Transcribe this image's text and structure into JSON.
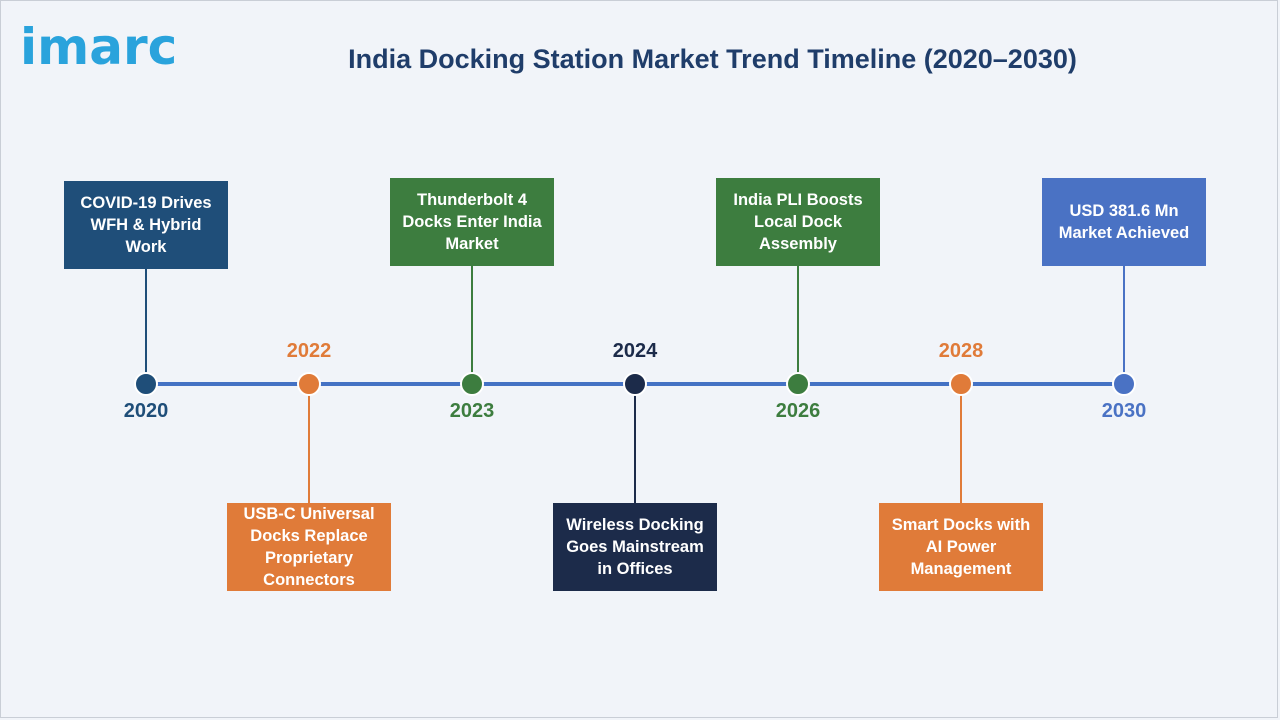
{
  "logo": "imarc",
  "title": "India Docking Station Market Trend Timeline (2020–2030)",
  "colors": {
    "line": "#4472c4",
    "navy": "#1f4e79",
    "orange": "#e07b39",
    "green": "#3d7d3f",
    "dark": "#1c2b4a",
    "blue": "#4a72c4"
  },
  "milestones": [
    {
      "year": "2020",
      "text": "COVID-19 Drives WFH & Hybrid Work",
      "position": "above",
      "color": "#1f4e79"
    },
    {
      "year": "2022",
      "text": "USB-C Universal Docks Replace Proprietary Connectors",
      "position": "below",
      "color": "#e07b39"
    },
    {
      "year": "2023",
      "text": "Thunderbolt 4 Docks Enter India Market",
      "position": "above",
      "color": "#3d7d3f"
    },
    {
      "year": "2024",
      "text": "Wireless Docking Goes Mainstream in Offices",
      "position": "below",
      "color": "#1c2b4a"
    },
    {
      "year": "2026",
      "text": "India PLI Boosts Local Dock Assembly",
      "position": "above",
      "color": "#3d7d3f"
    },
    {
      "year": "2028",
      "text": "Smart Docks with AI Power Management",
      "position": "below",
      "color": "#e07b39"
    },
    {
      "year": "2030",
      "text": "USD 381.6 Mn Market Achieved",
      "position": "above",
      "color": "#4a72c4"
    }
  ]
}
